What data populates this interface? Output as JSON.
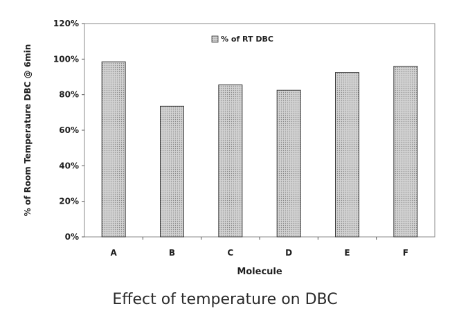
{
  "caption": "Effect of temperature on DBC",
  "colors": {
    "bar_fill": "#c9c9c9",
    "bar_stroke": "#3a3a3a",
    "axis": "#555555",
    "text": "#1f1f1f"
  },
  "chart_data": {
    "type": "bar",
    "categories": [
      "A",
      "B",
      "C",
      "D",
      "E",
      "F"
    ],
    "series": [
      {
        "name": "% of RT DBC",
        "values": [
          98.5,
          73.5,
          85.5,
          82.5,
          92.5,
          96.0
        ]
      }
    ],
    "xlabel": "Molecule",
    "ylabel": "% of Room Temperature DBC @ 6min",
    "ylim": [
      0,
      120
    ],
    "yticks": [
      0,
      20,
      40,
      60,
      80,
      100,
      120
    ],
    "ytick_labels": [
      "0%",
      "20%",
      "40%",
      "60%",
      "80%",
      "100%",
      "120%"
    ],
    "grid": false,
    "legend_position": "top-center"
  }
}
